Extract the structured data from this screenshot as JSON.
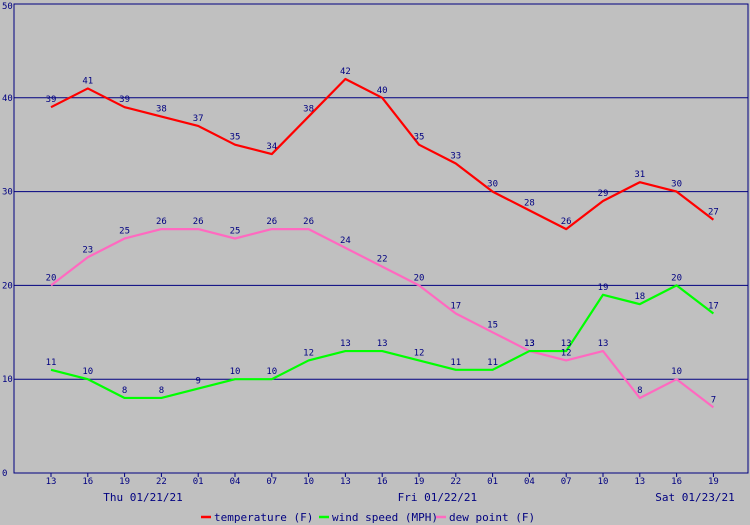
{
  "chart_data": {
    "type": "line",
    "x": [
      "13",
      "16",
      "19",
      "22",
      "01",
      "04",
      "07",
      "10",
      "13",
      "16",
      "19",
      "22",
      "01",
      "04",
      "07",
      "10",
      "13",
      "16",
      "19"
    ],
    "ylim": [
      0,
      50
    ],
    "yticks": [
      "0",
      "10",
      "20",
      "30",
      "40",
      "50"
    ],
    "grid": true,
    "day_labels": [
      {
        "text": "Thu 01/21/21",
        "at": 2.5
      },
      {
        "text": "Fri 01/22/21",
        "at": 10.5
      },
      {
        "text": "Sat 01/23/21",
        "at": 17.5
      }
    ],
    "legend_position": "bottom-center",
    "series": [
      {
        "name": "temperature (F)",
        "color": "#ff0000",
        "values": [
          39,
          41,
          39,
          38,
          37,
          35,
          34,
          38,
          42,
          40,
          35,
          33,
          30,
          28,
          26,
          29,
          31,
          30,
          27
        ]
      },
      {
        "name": "wind speed (MPH)",
        "color": "#00ff00",
        "values": [
          11,
          10,
          8,
          8,
          9,
          10,
          10,
          12,
          13,
          13,
          12,
          11,
          11,
          13,
          13,
          19,
          18,
          20,
          17
        ]
      },
      {
        "name": "dew point (F)",
        "color": "#ff69c0",
        "values": [
          20,
          23,
          25,
          26,
          26,
          25,
          26,
          26,
          24,
          22,
          20,
          17,
          15,
          13,
          12,
          13,
          8,
          10,
          7
        ]
      }
    ],
    "colors": {
      "background": "#c0c0c0",
      "axis": "#000080",
      "label": "#000080"
    }
  }
}
